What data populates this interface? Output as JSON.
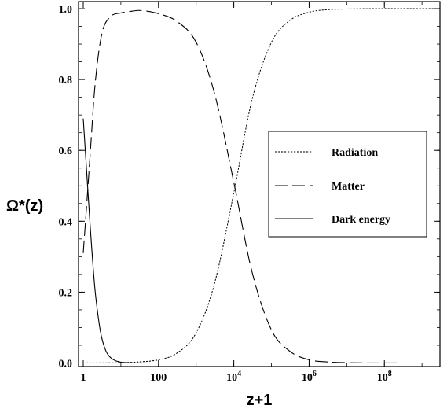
{
  "chart_data": {
    "type": "line",
    "xlabel": "z+1",
    "ylabel": "Ω*(z)",
    "x_scale": "log",
    "xlim": [
      0.75,
      3000000000
    ],
    "ylim": [
      -0.01,
      1.02
    ],
    "x_ticks": [
      {
        "value": 1,
        "label": "1"
      },
      {
        "value": 100,
        "label": "100"
      },
      {
        "value": 10000,
        "label": "10",
        "exp": "4"
      },
      {
        "value": 1000000,
        "label": "10",
        "exp": "6"
      },
      {
        "value": 100000000,
        "label": "10",
        "exp": "8"
      }
    ],
    "y_ticks": [
      {
        "value": 0.0,
        "label": "0.0"
      },
      {
        "value": 0.2,
        "label": "0.2"
      },
      {
        "value": 0.4,
        "label": "0.4"
      },
      {
        "value": 0.6,
        "label": "0.6"
      },
      {
        "value": 0.8,
        "label": "0.8"
      },
      {
        "value": 1.0,
        "label": "1.0"
      }
    ],
    "legend_position": "center-right",
    "series": [
      {
        "name": "Radiation",
        "style": "dotted",
        "x": [
          1,
          3,
          10,
          30,
          100,
          300,
          1000,
          3000,
          10000,
          30000,
          100000,
          300000,
          1000000,
          3000000,
          10000000,
          100000000,
          1000000000,
          2500000000
        ],
        "y": [
          0.0001,
          0.0003,
          0.0009,
          0.003,
          0.009,
          0.027,
          0.085,
          0.22,
          0.48,
          0.74,
          0.905,
          0.966,
          0.99,
          0.997,
          0.999,
          1.0,
          1.0,
          1.0
        ]
      },
      {
        "name": "Matter",
        "style": "dashed",
        "x": [
          1,
          1.3,
          1.6,
          2,
          3,
          5,
          10,
          20,
          30,
          50,
          100,
          300,
          1000,
          3000,
          10000,
          30000,
          100000,
          300000,
          1000000,
          3000000,
          10000000,
          100000000,
          1000000000,
          2500000000
        ],
        "y": [
          0.31,
          0.48,
          0.62,
          0.77,
          0.92,
          0.975,
          0.988,
          0.993,
          0.995,
          0.993,
          0.986,
          0.965,
          0.905,
          0.765,
          0.51,
          0.26,
          0.093,
          0.034,
          0.009,
          0.003,
          0.001,
          0.0001,
          0.0,
          0.0
        ]
      },
      {
        "name": "Dark energy",
        "style": "solid",
        "x": [
          1,
          1.2,
          1.5,
          2,
          2.5,
          3,
          4,
          5,
          7,
          10,
          15,
          20,
          30,
          100,
          1000,
          100000,
          2500000000
        ],
        "y": [
          0.69,
          0.56,
          0.4,
          0.22,
          0.13,
          0.078,
          0.034,
          0.018,
          0.0069,
          0.0024,
          0.0007,
          0.0003,
          0.0001,
          0.0,
          0.0,
          0.0,
          0.0
        ]
      }
    ]
  }
}
